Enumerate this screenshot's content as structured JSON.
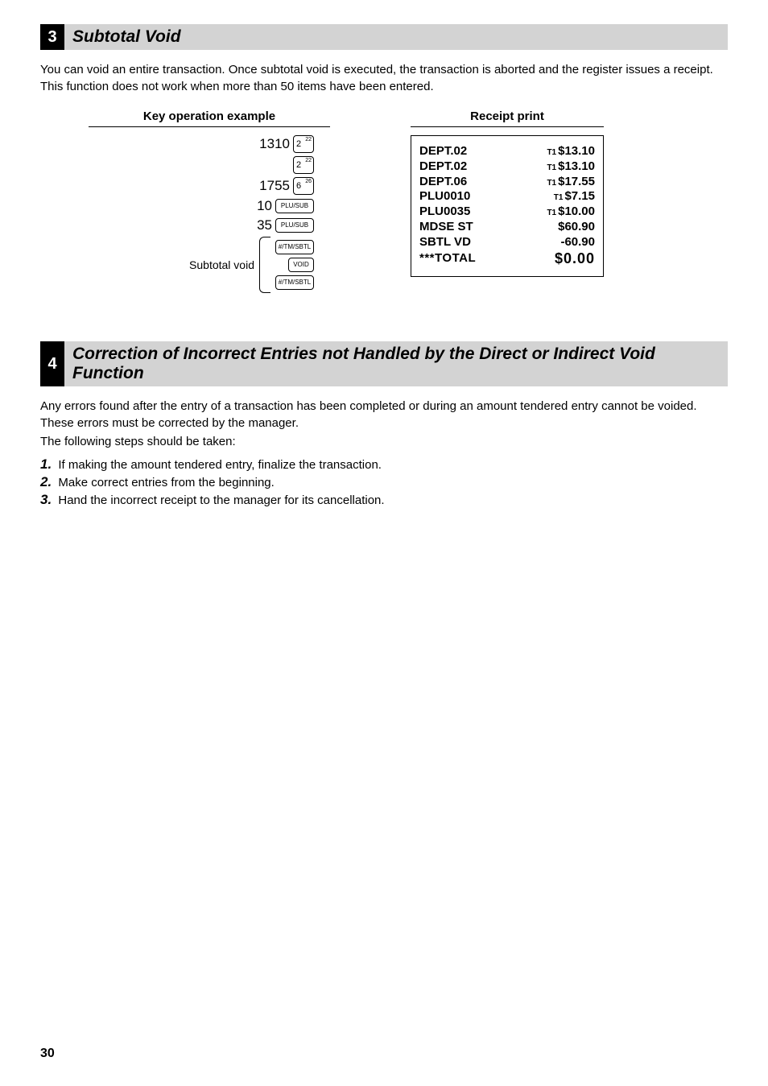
{
  "section3": {
    "num": "3",
    "title": "Subtotal Void",
    "intro": "You can void an entire transaction. Once subtotal void is executed, the transaction is aborted and the register issues a receipt.  This function does not work when more than 50 items have been entered.",
    "keyop_header": "Key operation example",
    "receipt_header": "Receipt print",
    "keyop": {
      "r1_num": "1310",
      "r1_key": "2",
      "r1_sup": "22",
      "r2_key": "2",
      "r2_sup": "22",
      "r3_num": "1755",
      "r3_key": "6",
      "r3_sup": "26",
      "r4_num": "10",
      "r4_key": "PLU/SUB",
      "r5_num": "35",
      "r5_key": "PLU/SUB",
      "sv_label": "Subtotal void",
      "sv_k1": "#/TM/SBTL",
      "sv_k2": "VOID",
      "sv_k3": "#/TM/SBTL"
    },
    "receipt": {
      "rows": [
        {
          "l": "DEPT.02",
          "tax": "T1",
          "v": "$13.10"
        },
        {
          "l": "DEPT.02",
          "tax": "T1",
          "v": "$13.10"
        },
        {
          "l": "DEPT.06",
          "tax": "T1",
          "v": "$17.55"
        },
        {
          "l": "PLU0010",
          "tax": "T1",
          "v": "$7.15"
        },
        {
          "l": "PLU0035",
          "tax": "T1",
          "v": "$10.00"
        },
        {
          "l": "MDSE ST",
          "tax": "",
          "v": "$60.90"
        },
        {
          "l": "SBTL VD",
          "tax": "",
          "v": "-60.90"
        }
      ],
      "total_l": "***TOTAL",
      "total_v": "$0.00"
    }
  },
  "section4": {
    "num": "4",
    "title": "Correction of Incorrect Entries not Handled by the Direct or Indirect Void Function",
    "p1": "Any errors found after the entry of a transaction has been completed or during an amount tendered entry cannot be voided. These errors must be corrected by the manager.",
    "p2": "The following steps should be taken:",
    "steps": [
      "If making the amount tendered entry, finalize the transaction.",
      "Make correct entries from the beginning.",
      "Hand the incorrect receipt to the manager for its cancellation."
    ],
    "step_nums": [
      "1.",
      "2.",
      "3."
    ]
  },
  "page_number": "30"
}
